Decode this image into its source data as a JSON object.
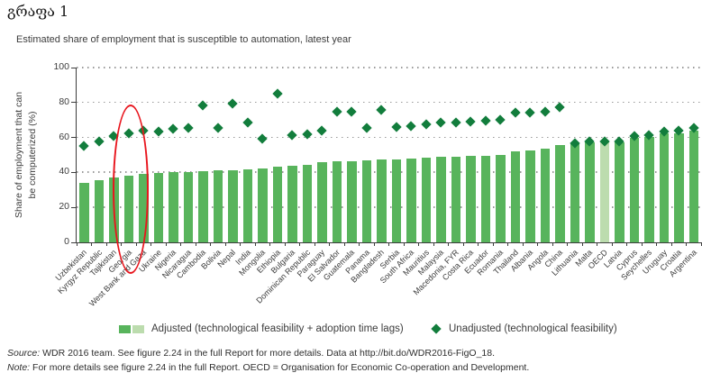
{
  "page": {
    "title": "გრაფა 1",
    "subtitle": "Estimated share of employment that is susceptible to automation, latest year"
  },
  "chart_data": {
    "type": "bar",
    "title": "Estimated share of employment that is susceptible to automation, latest year",
    "ylabel": "Share of employment that can be computerized (%)",
    "ylabel_lines": [
      "Share of employment that can",
      "be computerized (%)"
    ],
    "ylim": [
      0,
      100
    ],
    "yticks": [
      0,
      20,
      40,
      60,
      80,
      100
    ],
    "grid": "horizontal-dotted",
    "legend_position": "bottom",
    "categories": [
      "Uzbekistan",
      "Kyrgyz Republic",
      "Tajikistan",
      "Georgia",
      "West Bank and Gaza",
      "Ukraine",
      "Nigeria",
      "Nicaragua",
      "Cambodia",
      "Bolivia",
      "Nepal",
      "India",
      "Mongolia",
      "Ethiopia",
      "Bulgaria",
      "Dominican Republic",
      "Paraguay",
      "El Salvador",
      "Guatemala",
      "Panama",
      "Bangladesh",
      "Serbia",
      "South Africa",
      "Mauritius",
      "Malaysia",
      "Macedonia, FYR",
      "Costa Rica",
      "Ecuador",
      "Romania",
      "Thailand",
      "Albania",
      "Angola",
      "China",
      "Lithuania",
      "Malta",
      "OECD",
      "Latvia",
      "Cyprus",
      "Seychelles",
      "Uruguay",
      "Croatia",
      "Argentina"
    ],
    "series": [
      {
        "name": "Adjusted (technological feasibility + adoption time lags)",
        "type": "bar",
        "color": "#58b45c",
        "values": [
          34,
          35.5,
          37,
          38,
          39,
          39.5,
          40,
          40,
          40.5,
          41,
          41.5,
          42,
          42.5,
          43.5,
          44,
          44.5,
          46,
          46.5,
          46.5,
          47,
          47.5,
          47.5,
          48,
          48.5,
          49,
          49,
          49.5,
          49.5,
          50,
          52,
          52.5,
          53.5,
          55.5,
          56.5,
          57,
          57,
          57,
          60,
          60.5,
          62.5,
          62.5,
          64
        ]
      },
      {
        "name": "Unadjusted (technological feasibility)",
        "type": "diamond",
        "color": "#127d3c",
        "values": [
          55,
          57.5,
          61,
          62.5,
          64,
          63.5,
          65,
          65.5,
          78.5,
          65.5,
          79.5,
          68.5,
          59.5,
          85,
          61.5,
          62,
          64,
          75,
          75,
          65.5,
          76,
          66,
          66.5,
          67.5,
          68.5,
          68.5,
          69,
          69.5,
          70,
          74,
          74,
          75,
          77.5,
          56.5,
          57.5,
          57.5,
          57.5,
          61,
          61.5,
          63.5,
          64,
          65.5
        ]
      }
    ],
    "highlight_bar": {
      "category": "OECD",
      "color": "#bcdcae"
    },
    "annotation": {
      "shape": "red-ellipse",
      "color": "#e8151d",
      "category": "Georgia"
    }
  },
  "legend": {
    "adjusted_label": "Adjusted (technological feasibility + adoption time lags)",
    "unadjusted_label": "Unadjusted (technological feasibility)"
  },
  "footer": {
    "source_label": "Source:",
    "source_text": " WDR 2016 team. See figure 2.24 in the full Report for more details. Data at http://bit.do/WDR2016-FigO_18.",
    "note_label": "Note:",
    "note_text": " For more details see figure 2.24 in the full Report. OECD = Organisation for Economic Co-operation and Development."
  }
}
